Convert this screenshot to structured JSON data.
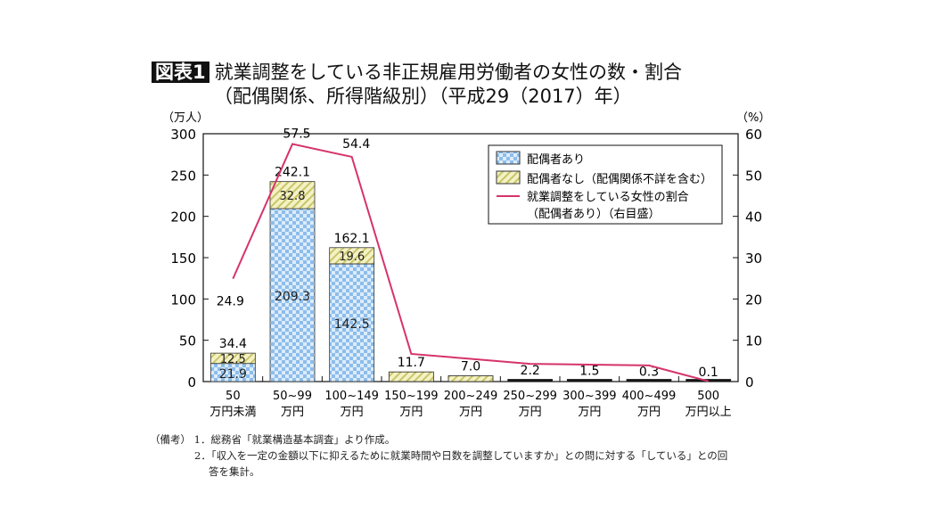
{
  "header": {
    "badge": "図表1",
    "title_line1": "就業調整をしている非正規雇用労働者の女性の数・割合",
    "title_line2": "（配偶関係、所得階級別）（平成29（2017）年）"
  },
  "chart_data": {
    "type": "bar",
    "title": "就業調整をしている非正規雇用労働者の女性の数・割合（配偶関係、所得階級別）（平成29（2017）年）",
    "categories": [
      [
        "50",
        "万円未満"
      ],
      [
        "50~99",
        "万円"
      ],
      [
        "100~149",
        "万円"
      ],
      [
        "150~199",
        "万円"
      ],
      [
        "200~249",
        "万円"
      ],
      [
        "250~299",
        "万円"
      ],
      [
        "300~399",
        "万円"
      ],
      [
        "400~499",
        "万円"
      ],
      [
        "500",
        "万円以上"
      ]
    ],
    "y_left": {
      "unit": "（万人）",
      "range": [
        0,
        300
      ],
      "ticks": [
        0,
        50,
        100,
        150,
        200,
        250,
        300
      ]
    },
    "y_right": {
      "unit": "（%）",
      "range": [
        0,
        60
      ],
      "ticks": [
        0,
        10,
        20,
        30,
        40,
        50,
        60
      ]
    },
    "series": [
      {
        "name": "配偶者あり",
        "type": "stacked-bar",
        "axis": "left",
        "values": [
          21.9,
          209.3,
          142.5,
          null,
          null,
          null,
          null,
          null,
          null
        ],
        "color": "#a9cdef"
      },
      {
        "name": "配偶者なし（配偶関係不詳を含む）",
        "type": "stacked-bar",
        "axis": "left",
        "values": [
          12.5,
          32.8,
          19.6,
          null,
          null,
          null,
          null,
          null,
          null
        ],
        "color": "#e8e6a0"
      },
      {
        "name": "就業調整をしている女性の割合（配偶者あり）（右目盛）",
        "type": "line",
        "axis": "right",
        "values": [
          24.9,
          57.5,
          54.4,
          6.7,
          5.5,
          4.3,
          4.1,
          3.9,
          0.1
        ],
        "labels": [
          "24.9",
          "57.5",
          "54.4"
        ],
        "color": "#d6336c"
      }
    ],
    "totals": [
      34.4,
      242.1,
      162.1,
      11.7,
      7.0,
      2.2,
      1.5,
      0.3,
      0.1
    ],
    "total_labels": [
      "34.4",
      "242.1",
      "162.1",
      "11.7",
      "7.0",
      "2.2",
      "1.5",
      "0.3",
      "0.1"
    ],
    "legend": {
      "placement": "top-right",
      "items": [
        "配偶者あり",
        "配偶者なし（配偶関係不詳を含む）",
        "就業調整をしている女性の割合",
        "（配偶者あり）（右目盛）"
      ]
    },
    "grid": false
  },
  "notes": {
    "label": "（備考）",
    "n1": "1．総務省「就業構造基本調査」より作成。",
    "n2": "2．「収入を一定の金額以下に抑えるために就業時間や日数を調整していますか」との問に対する「している」との回",
    "n2b": "答を集計。"
  }
}
